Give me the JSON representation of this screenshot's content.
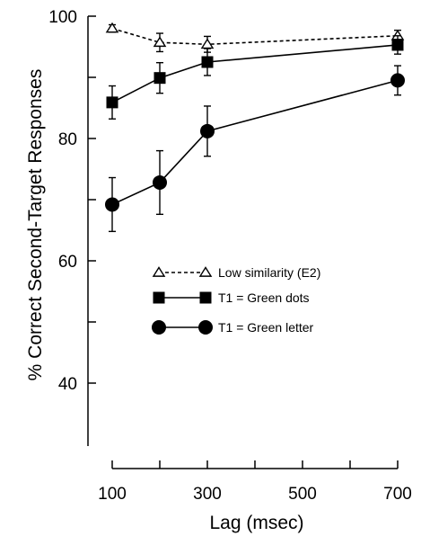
{
  "chart_data": {
    "type": "line",
    "title": "",
    "xlabel": "Lag (msec)",
    "ylabel": "% Correct Second-Target Responses",
    "xlim": [
      100,
      700
    ],
    "ylim": [
      30,
      100
    ],
    "x_ticks": [
      100,
      200,
      300,
      400,
      500,
      600,
      700
    ],
    "x_tick_labels": [
      "100",
      "",
      "300",
      "",
      "500",
      "",
      "700"
    ],
    "y_ticks": [
      40,
      50,
      60,
      70,
      80,
      90,
      100
    ],
    "y_tick_labels": [
      "40",
      "",
      "60",
      "",
      "80",
      "",
      "100"
    ],
    "grid": false,
    "legend_position": "center-right",
    "series": [
      {
        "name": "Low similarity (E2)",
        "marker": "open-triangle",
        "line_style": "dashed",
        "color": "#000000",
        "x": [
          100,
          200,
          300,
          700
        ],
        "y": [
          98.0,
          95.7,
          95.4,
          96.8
        ],
        "error": [
          0.6,
          1.5,
          1.3,
          0.9
        ]
      },
      {
        "name": "T1 = Green dots",
        "marker": "filled-square",
        "line_style": "solid",
        "color": "#000000",
        "x": [
          100,
          200,
          300,
          700
        ],
        "y": [
          85.9,
          89.9,
          92.5,
          95.3
        ],
        "error": [
          2.7,
          2.5,
          2.2,
          1.5
        ]
      },
      {
        "name": "T1 = Green letter",
        "marker": "filled-circle",
        "line_style": "solid",
        "color": "#000000",
        "x": [
          100,
          200,
          300,
          700
        ],
        "y": [
          69.2,
          72.8,
          81.2,
          89.5
        ],
        "error": [
          4.4,
          5.2,
          4.1,
          2.4
        ]
      }
    ]
  }
}
